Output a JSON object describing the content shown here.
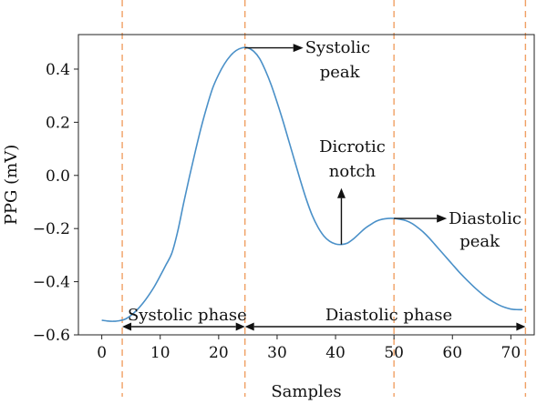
{
  "chart_data": {
    "type": "line",
    "xlabel": "Samples",
    "ylabel": "PPG (mV)",
    "xlim": [
      -4,
      74
    ],
    "ylim": [
      -0.6,
      0.53
    ],
    "x_ticks": [
      0,
      10,
      20,
      30,
      40,
      50,
      60,
      70
    ],
    "y_ticks": [
      0.4,
      0.2,
      0.0,
      -0.2,
      -0.4,
      -0.6
    ],
    "y_tick_labels": [
      "0.4",
      "0.2",
      "0.0",
      "−0.2",
      "−0.4",
      "−0.6"
    ],
    "grid": false,
    "series": [
      {
        "color": "#4a90c8",
        "points": [
          [
            0,
            -0.545
          ],
          [
            1,
            -0.548
          ],
          [
            2,
            -0.549
          ],
          [
            3,
            -0.547
          ],
          [
            4,
            -0.541
          ],
          [
            5,
            -0.527
          ],
          [
            6,
            -0.507
          ],
          [
            7,
            -0.482
          ],
          [
            8,
            -0.452
          ],
          [
            9,
            -0.418
          ],
          [
            10,
            -0.378
          ],
          [
            11,
            -0.336
          ],
          [
            12,
            -0.292
          ],
          [
            13,
            -0.21
          ],
          [
            14,
            -0.105
          ],
          [
            15,
            -0.005
          ],
          [
            16,
            0.09
          ],
          [
            17,
            0.18
          ],
          [
            18,
            0.26
          ],
          [
            19,
            0.33
          ],
          [
            20,
            0.38
          ],
          [
            21,
            0.42
          ],
          [
            22,
            0.45
          ],
          [
            23,
            0.47
          ],
          [
            24,
            0.48
          ],
          [
            25,
            0.48
          ],
          [
            26,
            0.467
          ],
          [
            27,
            0.44
          ],
          [
            28,
            0.395
          ],
          [
            29,
            0.34
          ],
          [
            30,
            0.275
          ],
          [
            31,
            0.205
          ],
          [
            32,
            0.13
          ],
          [
            33,
            0.055
          ],
          [
            34,
            -0.02
          ],
          [
            35,
            -0.09
          ],
          [
            36,
            -0.15
          ],
          [
            37,
            -0.195
          ],
          [
            38,
            -0.228
          ],
          [
            39,
            -0.248
          ],
          [
            40,
            -0.258
          ],
          [
            41,
            -0.26
          ],
          [
            42,
            -0.255
          ],
          [
            43,
            -0.24
          ],
          [
            44,
            -0.22
          ],
          [
            45,
            -0.2
          ],
          [
            46,
            -0.185
          ],
          [
            47,
            -0.172
          ],
          [
            48,
            -0.165
          ],
          [
            49,
            -0.162
          ],
          [
            50,
            -0.162
          ],
          [
            51,
            -0.165
          ],
          [
            52,
            -0.17
          ],
          [
            53,
            -0.18
          ],
          [
            54,
            -0.195
          ],
          [
            55,
            -0.213
          ],
          [
            56,
            -0.235
          ],
          [
            57,
            -0.26
          ],
          [
            58,
            -0.285
          ],
          [
            59,
            -0.31
          ],
          [
            60,
            -0.335
          ],
          [
            61,
            -0.36
          ],
          [
            62,
            -0.383
          ],
          [
            63,
            -0.405
          ],
          [
            64,
            -0.426
          ],
          [
            65,
            -0.445
          ],
          [
            66,
            -0.462
          ],
          [
            67,
            -0.476
          ],
          [
            68,
            -0.488
          ],
          [
            69,
            -0.497
          ],
          [
            70,
            -0.503
          ],
          [
            71,
            -0.505
          ],
          [
            72,
            -0.505
          ]
        ]
      }
    ],
    "vlines": {
      "color": "#f0a064",
      "x": [
        3.5,
        24.5,
        50,
        72.5
      ]
    },
    "annotations": {
      "systolic_peak": [
        "Systolic",
        "peak"
      ],
      "dicrotic_notch": [
        "Dicrotic",
        "notch"
      ],
      "diastolic_peak": [
        "Diastolic",
        "peak"
      ],
      "systolic_phase": "Systolic phase",
      "diastolic_phase": "Diastolic phase"
    }
  }
}
